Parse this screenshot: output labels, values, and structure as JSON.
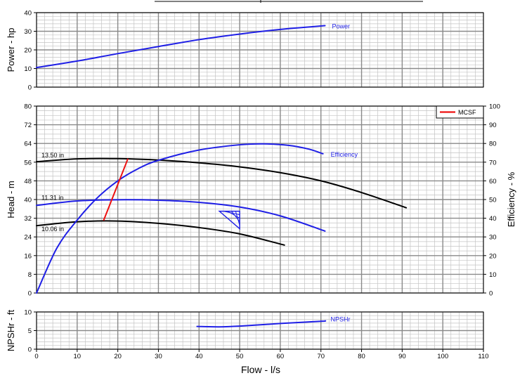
{
  "chart_data": {
    "type": "line",
    "x": {
      "label": "Flow - l/s",
      "range": [
        0,
        110
      ],
      "ticks": [
        "0",
        "10",
        "20",
        "30",
        "40",
        "50",
        "60",
        "70",
        "80",
        "90",
        "100",
        "110"
      ]
    },
    "power_panel": {
      "ylabel": "Power - hp",
      "ylim": [
        0,
        40
      ],
      "ticks": [
        "0",
        "10",
        "20",
        "30",
        "40"
      ],
      "series": [
        {
          "name": "Power",
          "color": "#1f1fe6",
          "points": [
            [
              0,
              10.5
            ],
            [
              10,
              14
            ],
            [
              20,
              18
            ],
            [
              30,
              21.8
            ],
            [
              40,
              25.5
            ],
            [
              50,
              28.5
            ],
            [
              60,
              31
            ],
            [
              71,
              33
            ]
          ]
        }
      ]
    },
    "head_panel": {
      "ylabel": "Head - m",
      "ylim": [
        0,
        80
      ],
      "ticks": [
        "0",
        "8",
        "16",
        "24",
        "32",
        "40",
        "48",
        "56",
        "64",
        "72",
        "80"
      ],
      "y2label": "Efficiency - %",
      "y2lim": [
        0,
        100
      ],
      "y2ticks": [
        "0",
        "10",
        "20",
        "30",
        "40",
        "50",
        "60",
        "70",
        "80",
        "90",
        "100"
      ],
      "legend": {
        "entry": "MCSF",
        "color": "#ee1111",
        "position": "top-right"
      },
      "head_curves": [
        {
          "name": "13.50 in",
          "color": "#000000",
          "points": [
            [
              0,
              56.2
            ],
            [
              10,
              57.4
            ],
            [
              20,
              57.5
            ],
            [
              30,
              56.9
            ],
            [
              40,
              55.7
            ],
            [
              50,
              54
            ],
            [
              60,
              51.5
            ],
            [
              70,
              48
            ],
            [
              80,
              43
            ],
            [
              91,
              36.5
            ]
          ]
        },
        {
          "name": "11.31 in",
          "color": "#1f1fe6",
          "points": [
            [
              0,
              37.5
            ],
            [
              10,
              39.4
            ],
            [
              20,
              39.9
            ],
            [
              30,
              39.7
            ],
            [
              40,
              38.8
            ],
            [
              50,
              36.8
            ],
            [
              60,
              33
            ],
            [
              71,
              26.5
            ]
          ]
        },
        {
          "name": "10.06 in",
          "color": "#000000",
          "points": [
            [
              0,
              28.8
            ],
            [
              10,
              30.5
            ],
            [
              20,
              30.8
            ],
            [
              30,
              29.8
            ],
            [
              40,
              28
            ],
            [
              50,
              25.3
            ],
            [
              61,
              20.5
            ]
          ]
        }
      ],
      "efficiency": {
        "name": "Efficiency",
        "color": "#1f1fe6",
        "points": [
          [
            0,
            0
          ],
          [
            5,
            24
          ],
          [
            10,
            39
          ],
          [
            15,
            51
          ],
          [
            20,
            60
          ],
          [
            25,
            66.5
          ],
          [
            30,
            71
          ],
          [
            40,
            76.5
          ],
          [
            50,
            79.3
          ],
          [
            56,
            79.8
          ],
          [
            62,
            79
          ],
          [
            67,
            77
          ],
          [
            70.5,
            74.5
          ]
        ]
      },
      "mcsf_line": {
        "name": "MCSF",
        "color": "#ee1111",
        "points": [
          [
            16.5,
            31
          ],
          [
            22.5,
            57.5
          ]
        ]
      },
      "bep_zone": {
        "color": "#1f1fe6",
        "points": [
          [
            45,
            35
          ],
          [
            50,
            35
          ],
          [
            50,
            27.5
          ]
        ]
      }
    },
    "npsh_panel": {
      "ylabel": "NPSHr - ft",
      "ylim": [
        0,
        10
      ],
      "ticks": [
        "0",
        "5",
        "10"
      ],
      "series": [
        {
          "name": "NPSHr",
          "color": "#1f1fe6",
          "points": [
            [
              39.5,
              6.1
            ],
            [
              45,
              6
            ],
            [
              50,
              6.2
            ],
            [
              60,
              6.9
            ],
            [
              70,
              7.5
            ],
            [
              71,
              7.6
            ]
          ]
        }
      ]
    }
  }
}
